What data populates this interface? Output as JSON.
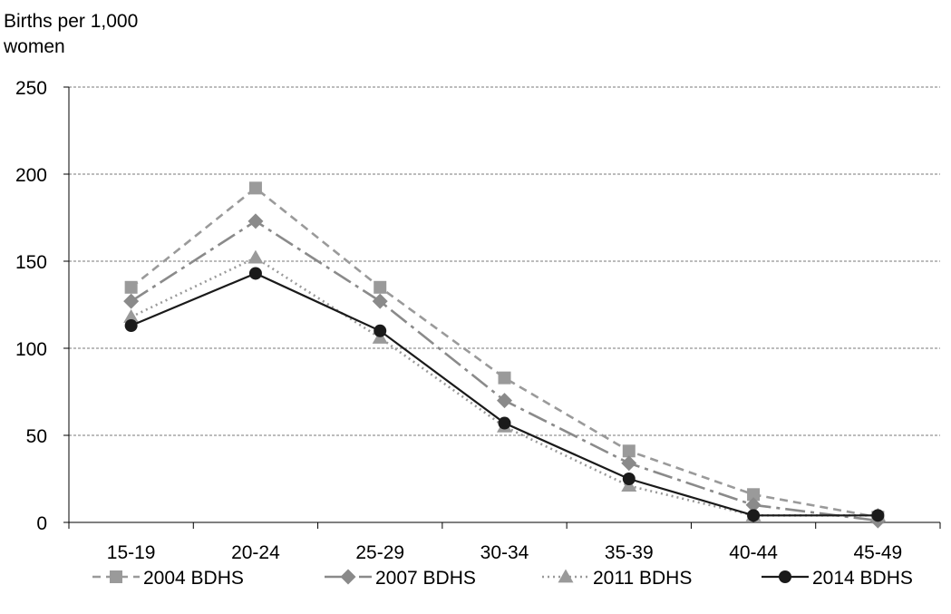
{
  "chart_data": {
    "type": "line",
    "title": "",
    "ylabel": "Births per 1,000 women",
    "ylabel_lines": [
      "Births per 1,000",
      "women"
    ],
    "xlabel": "",
    "categories": [
      "15-19",
      "20-24",
      "25-29",
      "30-34",
      "35-39",
      "40-44",
      "45-49"
    ],
    "ylim": [
      0,
      250
    ],
    "yticks": [
      0,
      50,
      100,
      150,
      200,
      250
    ],
    "grid": "horizontal dashed",
    "legend_position": "bottom",
    "series": [
      {
        "name": "2004 BDHS",
        "values": [
          135,
          192,
          135,
          83,
          41,
          16,
          3
        ],
        "color": "#9a9a9a",
        "marker": "square",
        "dash": "9,6"
      },
      {
        "name": "2007 BDHS",
        "values": [
          127,
          173,
          127,
          70,
          34,
          10,
          1
        ],
        "color": "#8a8a8a",
        "marker": "diamond",
        "dash": "22,6,4,6"
      },
      {
        "name": "2011 BDHS",
        "values": [
          118,
          152,
          106,
          55,
          21,
          4,
          4
        ],
        "color": "#9a9a9a",
        "marker": "triangle",
        "dash": "2,4"
      },
      {
        "name": "2014 BDHS",
        "values": [
          113,
          143,
          110,
          57,
          25,
          4,
          4
        ],
        "color": "#1a1a1a",
        "marker": "circle",
        "dash": ""
      }
    ]
  }
}
